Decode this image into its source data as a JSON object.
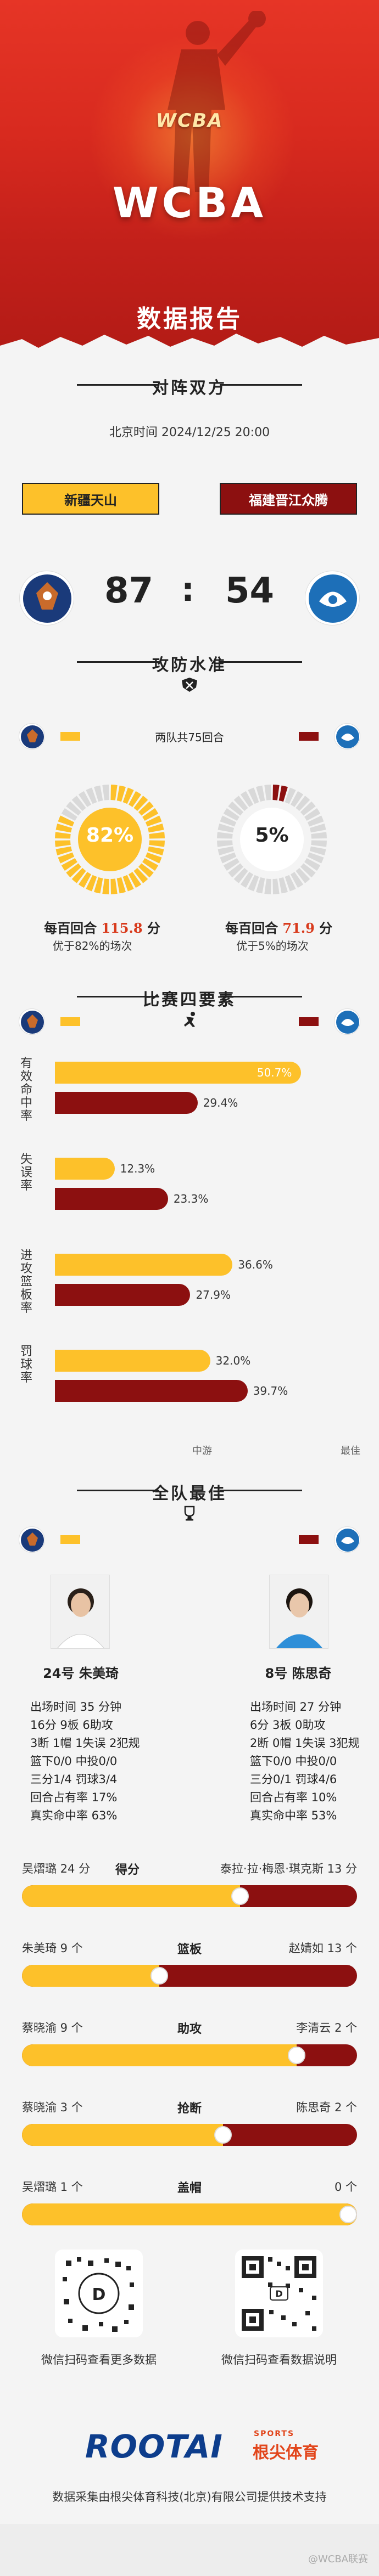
{
  "hero": {
    "logo_text": "WCBA",
    "title": "WCBA",
    "subtitle": "数据报告"
  },
  "matchup": {
    "section_title": "对阵双方",
    "datetime": "北京时间 2024/12/25 20:00",
    "home": {
      "name": "新疆天山",
      "score": "87"
    },
    "away": {
      "name": "福建晋江众腾",
      "score": "54"
    },
    "colon": ":"
  },
  "offense": {
    "section_title": "攻防水准",
    "rounds_text": "两队共75回合",
    "home": {
      "pct_label": "82%",
      "pct": 0.82,
      "pace_prefix": "每百回合",
      "pace_value": "115.8",
      "pace_suffix": "分",
      "sub": "优于82%的场次"
    },
    "away": {
      "pct_label": "5%",
      "pct": 0.05,
      "pace_prefix": "每百回合",
      "pace_value": "71.9",
      "pace_suffix": "分",
      "sub": "优于5%的场次"
    }
  },
  "four_factors": {
    "section_title": "比赛四要素",
    "rows": [
      {
        "label": "有效命中率",
        "home": "50.7%",
        "home_v": 0.507,
        "away": "29.4%",
        "away_v": 0.294
      },
      {
        "label": "失误率",
        "home": "12.3%",
        "home_v": 0.123,
        "away": "23.3%",
        "away_v": 0.233
      },
      {
        "label": "进攻篮板率",
        "home": "36.6%",
        "home_v": 0.366,
        "away": "27.9%",
        "away_v": 0.279
      },
      {
        "label": "罚球率",
        "home": "32.0%",
        "home_v": 0.32,
        "away": "39.7%",
        "away_v": 0.397
      }
    ],
    "ticks": [
      "中游",
      "最佳"
    ]
  },
  "best": {
    "section_title": "全队最佳",
    "home_player": {
      "name": "24号 朱美琦",
      "lines": [
        "出场时间 35 分钟",
        "16分  9板  6助攻",
        "3断  1帽  1失误  2犯规",
        "篮下0/0  中投0/0",
        "三分1/4  罚球3/4",
        "回合占有率 17%",
        "真实命中率 63%"
      ]
    },
    "away_player": {
      "name": "8号 陈思奇",
      "lines": [
        "出场时间 27 分钟",
        "6分  3板  0助攻",
        "2断  0帽  1失误  3犯规",
        "篮下0/0  中投0/0",
        "三分0/1  罚球4/6",
        "回合占有率 10%",
        "真实命中率 53%"
      ]
    },
    "compare": [
      {
        "cat": "得分",
        "left": "吴熠璐 24 分",
        "right": "泰拉·拉·梅恩·琪克斯 13 分",
        "ratio": 0.65,
        "inline": true
      },
      {
        "cat": "篮板",
        "left": "朱美琦 9 个",
        "right": "赵婧如 13 个",
        "ratio": 0.41
      },
      {
        "cat": "助攻",
        "left": "蔡晓渝 9 个",
        "right": "李清云 2 个",
        "ratio": 0.82
      },
      {
        "cat": "抢断",
        "left": "蔡晓渝 3 个",
        "right": "陈思奇 2 个",
        "ratio": 0.6
      },
      {
        "cat": "盖帽",
        "left": "吴熠璐 1 个",
        "right": "0 个",
        "ratio": 1.0
      }
    ]
  },
  "footer": {
    "qr_left_caption": "微信扫码查看更多数据",
    "qr_right_caption": "微信扫码查看数据说明",
    "brand": "ROOTAI",
    "brand_en": "SPORTS",
    "brand_cn": "根尖体育",
    "credit": "数据采集由根尖体育科技(北京)有限公司提供技术支持",
    "watermark": "@WCBA联赛"
  },
  "colors": {
    "home": "#fdc12a",
    "away": "#8c1010",
    "accent": "#d83a1c",
    "brand_blue": "#0d3d8c"
  }
}
